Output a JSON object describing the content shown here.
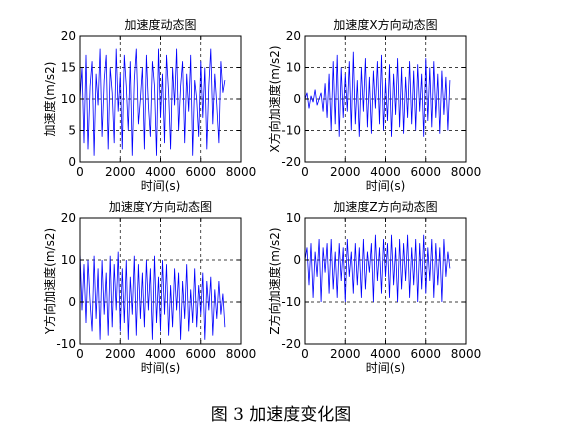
{
  "caption": "图 3  加速度变化图",
  "chart_data": [
    {
      "type": "line",
      "title": "加速度动态图",
      "xlabel": "时间(s)",
      "ylabel": "加速度(m/s2)",
      "xlim": [
        0,
        8000
      ],
      "ylim": [
        0,
        20
      ],
      "xticks": [
        0,
        2000,
        4000,
        6000,
        8000
      ],
      "yticks": [
        0,
        5,
        10,
        15,
        20
      ],
      "grid": true,
      "color": "#0000ff",
      "series": [
        {
          "x": [
            0,
            100,
            200,
            300,
            400,
            500,
            600,
            700,
            800,
            900,
            1000,
            1100,
            1200,
            1300,
            1400,
            1500,
            1600,
            1700,
            1800,
            1900,
            2000,
            2100,
            2200,
            2300,
            2400,
            2500,
            2600,
            2700,
            2800,
            2900,
            3000,
            3100,
            3200,
            3300,
            3400,
            3500,
            3600,
            3700,
            3800,
            3900,
            4000,
            4100,
            4200,
            4300,
            4400,
            4500,
            4600,
            4700,
            4800,
            4900,
            5000,
            5100,
            5200,
            5300,
            5400,
            5500,
            5600,
            5700,
            5800,
            5900,
            6000,
            6100,
            6200,
            6300,
            6400,
            6500,
            6600,
            6700,
            6800,
            6900,
            7000,
            7100,
            7200
          ],
          "values": [
            10,
            15,
            3,
            17,
            2,
            12,
            16,
            1,
            14,
            9,
            18,
            4,
            13,
            17,
            2,
            15,
            11,
            3,
            18,
            8,
            14,
            2,
            17,
            12,
            5,
            16,
            1,
            13,
            18,
            6,
            10,
            15,
            2,
            17,
            9,
            4,
            16,
            12,
            1,
            18,
            7,
            14,
            3,
            17,
            11,
            2,
            15,
            9,
            18,
            5,
            12,
            16,
            3,
            14,
            8,
            17,
            1,
            13,
            10,
            4,
            16,
            7,
            15,
            2,
            12,
            18,
            6,
            14,
            9,
            3,
            16,
            11,
            13
          ]
        }
      ]
    },
    {
      "type": "line",
      "title": "加速度X方向动态图",
      "xlabel": "时间(s)",
      "ylabel": "X方向加速度(m/s2)",
      "xlim": [
        0,
        8000
      ],
      "ylim": [
        -20,
        20
      ],
      "xticks": [
        0,
        2000,
        4000,
        6000,
        8000
      ],
      "yticks": [
        -20,
        -10,
        0,
        10,
        20
      ],
      "grid": true,
      "color": "#0000ff",
      "series": [
        {
          "x": [
            0,
            100,
            200,
            300,
            400,
            500,
            600,
            700,
            800,
            900,
            1000,
            1100,
            1200,
            1300,
            1400,
            1500,
            1600,
            1700,
            1800,
            1900,
            2000,
            2100,
            2200,
            2300,
            2400,
            2500,
            2600,
            2700,
            2800,
            2900,
            3000,
            3100,
            3200,
            3300,
            3400,
            3500,
            3600,
            3700,
            3800,
            3900,
            4000,
            4100,
            4200,
            4300,
            4400,
            4500,
            4600,
            4700,
            4800,
            4900,
            5000,
            5100,
            5200,
            5300,
            5400,
            5500,
            5600,
            5700,
            5800,
            5900,
            6000,
            6100,
            6200,
            6300,
            6400,
            6500,
            6600,
            6700,
            6800,
            6900,
            7000,
            7100,
            7200
          ],
          "values": [
            0,
            2,
            -3,
            1,
            -1,
            3,
            -2,
            0,
            2,
            -4,
            5,
            -6,
            8,
            -10,
            12,
            -8,
            14,
            -12,
            10,
            -6,
            8,
            -4,
            12,
            -10,
            15,
            -8,
            6,
            -12,
            10,
            -4,
            13,
            -9,
            7,
            -11,
            9,
            -3,
            12,
            -8,
            14,
            -10,
            6,
            -7,
            11,
            -12,
            8,
            -5,
            13,
            -9,
            10,
            -11,
            7,
            -6,
            12,
            -8,
            9,
            -10,
            11,
            -4,
            8,
            -12,
            13,
            -7,
            10,
            -9,
            12,
            -6,
            8,
            -11,
            9,
            -5,
            7,
            -10,
            6
          ]
        }
      ]
    },
    {
      "type": "line",
      "title": "加速度Y方向动态图",
      "xlabel": "时间(s)",
      "ylabel": "Y方向加速度(m/s2)",
      "xlim": [
        0,
        8000
      ],
      "ylim": [
        -10,
        20
      ],
      "xticks": [
        0,
        2000,
        4000,
        6000,
        8000
      ],
      "yticks": [
        -10,
        0,
        10,
        20
      ],
      "grid": true,
      "color": "#0000ff",
      "series": [
        {
          "x": [
            0,
            100,
            200,
            300,
            400,
            500,
            600,
            700,
            800,
            900,
            1000,
            1100,
            1200,
            1300,
            1400,
            1500,
            1600,
            1700,
            1800,
            1900,
            2000,
            2100,
            2200,
            2300,
            2400,
            2500,
            2600,
            2700,
            2800,
            2900,
            3000,
            3100,
            3200,
            3300,
            3400,
            3500,
            3600,
            3700,
            3800,
            3900,
            4000,
            4100,
            4200,
            4300,
            4400,
            4500,
            4600,
            4700,
            4800,
            4900,
            5000,
            5100,
            5200,
            5300,
            5400,
            5500,
            5600,
            5700,
            5800,
            5900,
            6000,
            6100,
            6200,
            6300,
            6400,
            6500,
            6600,
            6700,
            6800,
            6900,
            7000,
            7100,
            7200
          ],
          "values": [
            12,
            -2,
            9,
            -5,
            10,
            0,
            -7,
            11,
            -4,
            8,
            -9,
            10,
            -3,
            7,
            -8,
            11,
            -6,
            9,
            -2,
            12,
            -7,
            8,
            -5,
            10,
            -9,
            6,
            -3,
            11,
            -8,
            9,
            -4,
            7,
            -6,
            10,
            -2,
            8,
            -9,
            11,
            -5,
            6,
            -7,
            10,
            -3,
            9,
            -8,
            4,
            -6,
            8,
            -2,
            7,
            -9,
            5,
            -4,
            9,
            -7,
            3,
            -5,
            8,
            -6,
            4,
            -3,
            7,
            -9,
            5,
            -2,
            6,
            -8,
            3,
            -4,
            5,
            -3,
            2,
            -6
          ]
        }
      ]
    },
    {
      "type": "line",
      "title": "加速度Z方向动态图",
      "xlabel": "时间(s)",
      "ylabel": "Z方向加速度(m/s2)",
      "xlim": [
        0,
        8000
      ],
      "ylim": [
        -20,
        10
      ],
      "xticks": [
        0,
        2000,
        4000,
        6000,
        8000
      ],
      "yticks": [
        -20,
        -10,
        0,
        10
      ],
      "grid": true,
      "color": "#0000ff",
      "series": [
        {
          "x": [
            0,
            100,
            200,
            300,
            400,
            500,
            600,
            700,
            800,
            900,
            1000,
            1100,
            1200,
            1300,
            1400,
            1500,
            1600,
            1700,
            1800,
            1900,
            2000,
            2100,
            2200,
            2300,
            2400,
            2500,
            2600,
            2700,
            2800,
            2900,
            3000,
            3100,
            3200,
            3300,
            3400,
            3500,
            3600,
            3700,
            3800,
            3900,
            4000,
            4100,
            4200,
            4300,
            4400,
            4500,
            4600,
            4700,
            4800,
            4900,
            5000,
            5100,
            5200,
            5300,
            5400,
            5500,
            5600,
            5700,
            5800,
            5900,
            6000,
            6100,
            6200,
            6300,
            6400,
            6500,
            6600,
            6700,
            6800,
            6900,
            7000,
            7100,
            7200
          ],
          "values": [
            0,
            3,
            -6,
            4,
            -9,
            2,
            -4,
            5,
            -10,
            3,
            -3,
            4,
            -8,
            5,
            -7,
            2,
            -9,
            4,
            -5,
            3,
            -10,
            5,
            -4,
            2,
            -8,
            4,
            -6,
            3,
            -9,
            5,
            -7,
            2,
            -3,
            4,
            -10,
            6,
            -5,
            3,
            -8,
            5,
            -4,
            4,
            -9,
            6,
            -6,
            3,
            -10,
            5,
            -7,
            4,
            -5,
            6,
            -9,
            3,
            -6,
            5,
            -10,
            4,
            -7,
            6,
            -8,
            3,
            -5,
            5,
            -9,
            4,
            -6,
            3,
            -10,
            5,
            -4,
            2,
            -2
          ]
        }
      ]
    }
  ]
}
